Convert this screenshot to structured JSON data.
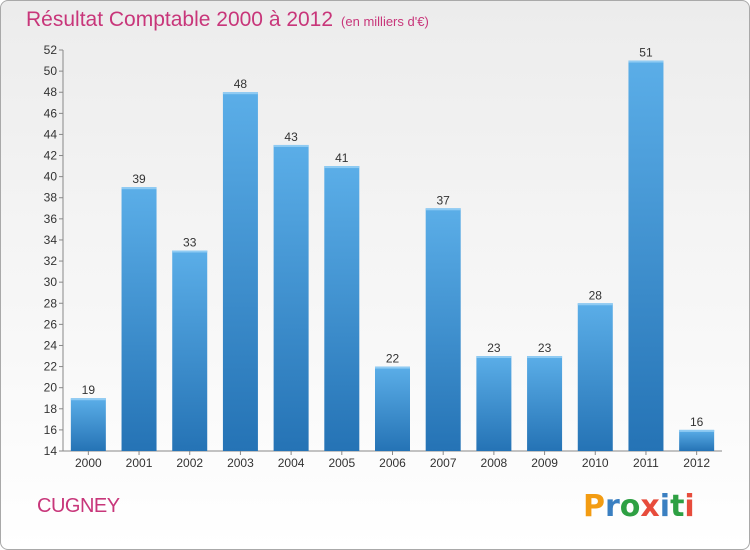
{
  "header": {
    "title": "Résultat Comptable 2000 à 2012",
    "subtitle": "(en milliers d'€)"
  },
  "town": "CUGNEY",
  "logo": {
    "text": "Proxiti",
    "colors": [
      "#f39c12",
      "#3a7fc1",
      "#2ea043",
      "#e74c3c",
      "#3a7fc1",
      "#2ea043",
      "#e74c3c"
    ]
  },
  "colors": {
    "accent": "#c8367a",
    "bar_top": "#5baee8",
    "bar_bottom": "#2573b5"
  },
  "chart_data": {
    "type": "bar",
    "title": "Résultat Comptable 2000 à 2012",
    "subtitle": "(en milliers d'€)",
    "xlabel": "",
    "ylabel": "",
    "categories": [
      "2000",
      "2001",
      "2002",
      "2003",
      "2004",
      "2005",
      "2006",
      "2007",
      "2008",
      "2009",
      "2010",
      "2011",
      "2012"
    ],
    "values": [
      19,
      39,
      33,
      48,
      43,
      41,
      22,
      37,
      23,
      23,
      28,
      51,
      16
    ],
    "ylim": [
      14,
      52
    ],
    "yticks": [
      14,
      16,
      18,
      20,
      22,
      24,
      26,
      28,
      30,
      32,
      34,
      36,
      38,
      40,
      42,
      44,
      46,
      48,
      50,
      52
    ],
    "grid": false,
    "data_labels": true
  }
}
